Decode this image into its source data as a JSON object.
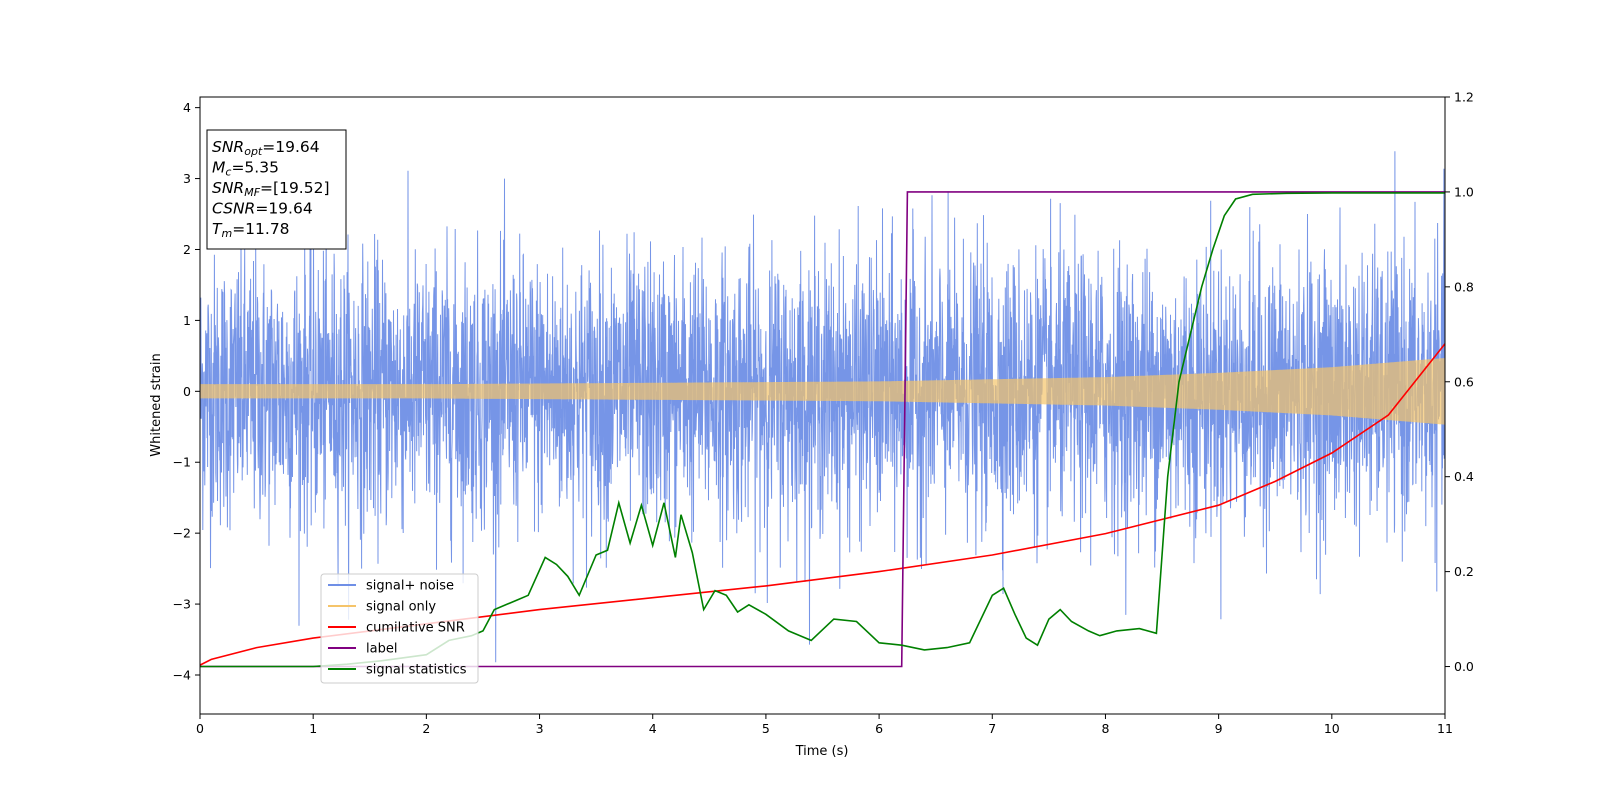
{
  "chart_data": {
    "type": "line",
    "xlabel": "Time (s)",
    "ylabel": "Whitened strain",
    "xlim": [
      0,
      11
    ],
    "ylim": [
      -4.55,
      4.15
    ],
    "y2lim": [
      -0.1,
      1.2
    ],
    "x_ticks": [
      "0",
      "1",
      "2",
      "3",
      "4",
      "5",
      "6",
      "7",
      "8",
      "9",
      "10",
      "11"
    ],
    "y_ticks": [
      "4",
      "3",
      "2",
      "1",
      "0",
      "−1",
      "−2",
      "−3",
      "−4"
    ],
    "y2_ticks": [
      "0.0",
      "0.2",
      "0.4",
      "0.6",
      "0.8",
      "1.0",
      "1.2"
    ],
    "legend_position": "lower-left",
    "annotation_lines": [
      {
        "main": "SNR",
        "sub": "opt",
        "rest": "=19.64"
      },
      {
        "main": "M",
        "sub": "c",
        "rest": "=5.35"
      },
      {
        "main": "SNR",
        "sub": "MF",
        "rest": "=[19.52]"
      },
      {
        "main": "CSNR",
        "sub": "",
        "rest": "=19.64"
      },
      {
        "main": "T",
        "sub": "m",
        "rest": "=11.78"
      }
    ],
    "series": [
      {
        "name": "signal+ noise",
        "color": "#6f8fe6",
        "axis": "left",
        "kind": "noise",
        "sigma": 0.95
      },
      {
        "name": "signal only",
        "color": "#f5c46a",
        "axis": "left",
        "kind": "chirp",
        "envelope_t": [
          0,
          2,
          4,
          6,
          8,
          9,
          10,
          11
        ],
        "envelope_amp": [
          0.1,
          0.1,
          0.12,
          0.14,
          0.2,
          0.26,
          0.34,
          0.47
        ]
      },
      {
        "name": "cumilative SNR",
        "color": "#ff0000",
        "axis": "right",
        "x": [
          0,
          0.1,
          0.5,
          1,
          2,
          3,
          4,
          5,
          6,
          7,
          8,
          9,
          9.5,
          10,
          10.5,
          11
        ],
        "values": [
          0.003,
          0.015,
          0.04,
          0.06,
          0.09,
          0.12,
          0.145,
          0.17,
          0.2,
          0.235,
          0.28,
          0.34,
          0.39,
          0.45,
          0.53,
          0.68
        ]
      },
      {
        "name": "label",
        "color": "#800080",
        "axis": "right",
        "x": [
          0,
          6.2,
          6.25,
          11
        ],
        "values": [
          0,
          0,
          1,
          1
        ]
      },
      {
        "name": "signal statistics",
        "color": "#008000",
        "axis": "right",
        "x": [
          0,
          1,
          1.3,
          1.6,
          2,
          2.2,
          2.4,
          2.5,
          2.6,
          2.8,
          2.9,
          3.05,
          3.15,
          3.25,
          3.35,
          3.5,
          3.6,
          3.7,
          3.8,
          3.9,
          4.0,
          4.1,
          4.2,
          4.25,
          4.35,
          4.45,
          4.55,
          4.65,
          4.75,
          4.85,
          5.0,
          5.2,
          5.4,
          5.6,
          5.8,
          6.0,
          6.2,
          6.4,
          6.6,
          6.8,
          7.0,
          7.1,
          7.2,
          7.3,
          7.4,
          7.5,
          7.6,
          7.7,
          7.85,
          7.95,
          8.1,
          8.3,
          8.45,
          8.55,
          8.65,
          8.75,
          8.85,
          8.95,
          9.05,
          9.15,
          9.3,
          9.6,
          10,
          10.5,
          11
        ],
        "values": [
          0,
          0,
          0.005,
          0.012,
          0.025,
          0.055,
          0.065,
          0.075,
          0.12,
          0.14,
          0.15,
          0.23,
          0.215,
          0.19,
          0.15,
          0.235,
          0.245,
          0.345,
          0.26,
          0.34,
          0.255,
          0.345,
          0.23,
          0.32,
          0.24,
          0.12,
          0.16,
          0.15,
          0.115,
          0.13,
          0.11,
          0.075,
          0.055,
          0.1,
          0.095,
          0.05,
          0.045,
          0.035,
          0.04,
          0.05,
          0.15,
          0.165,
          0.11,
          0.06,
          0.045,
          0.1,
          0.12,
          0.095,
          0.075,
          0.065,
          0.075,
          0.08,
          0.07,
          0.4,
          0.6,
          0.7,
          0.8,
          0.88,
          0.95,
          0.985,
          0.995,
          0.997,
          0.998,
          0.998,
          0.998
        ]
      }
    ]
  }
}
